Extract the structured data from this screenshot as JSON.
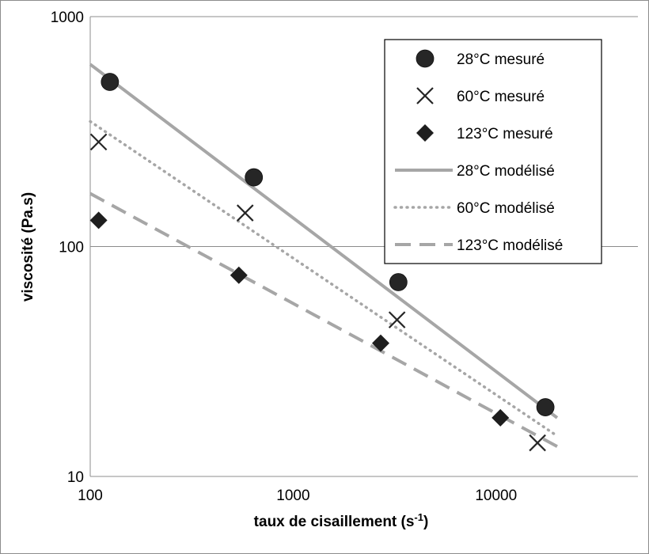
{
  "chart_data": {
    "type": "scatter",
    "xscale": "log",
    "yscale": "log",
    "xlim": [
      100,
      50000
    ],
    "ylim": [
      10,
      1000
    ],
    "xticks": [
      "100",
      "1000",
      "10000"
    ],
    "yticks": [
      "10",
      "100",
      "1000"
    ],
    "xlabel": "taux de cisaillement (s",
    "xlabel_sup": "-1",
    "xlabel_end": ")",
    "ylabel": "viscosité (Pa.s)",
    "grid": "horizontal",
    "legend_position": "right",
    "series": [
      {
        "name": "28°C mesuré",
        "kind": "marker",
        "marker": "circle",
        "color": "#262626",
        "points": [
          [
            125,
            520
          ],
          [
            640,
            200
          ],
          [
            3300,
            70
          ],
          [
            17500,
            20
          ]
        ]
      },
      {
        "name": "60°C mesuré",
        "kind": "marker",
        "marker": "x",
        "color": "#262626",
        "points": [
          [
            110,
            285
          ],
          [
            580,
            140
          ],
          [
            3250,
            48
          ],
          [
            16000,
            14
          ]
        ]
      },
      {
        "name": "123°C mesuré",
        "kind": "marker",
        "marker": "diamond",
        "color": "#1e1e1e",
        "points": [
          [
            110,
            130
          ],
          [
            540,
            75
          ],
          [
            2700,
            38
          ],
          [
            10500,
            18
          ]
        ]
      },
      {
        "name": "28°C modélisé",
        "kind": "line",
        "style": "solid",
        "color": "#a6a6a6",
        "points": [
          [
            100,
            620
          ],
          [
            20000,
            18
          ]
        ]
      },
      {
        "name": "60°C modélisé",
        "kind": "line",
        "style": "dotted",
        "color": "#a6a6a6",
        "points": [
          [
            100,
            350
          ],
          [
            20000,
            15
          ]
        ]
      },
      {
        "name": "123°C modélisé",
        "kind": "line",
        "style": "dashed",
        "color": "#a6a6a6",
        "points": [
          [
            100,
            170
          ],
          [
            20000,
            13.5
          ]
        ]
      }
    ]
  }
}
